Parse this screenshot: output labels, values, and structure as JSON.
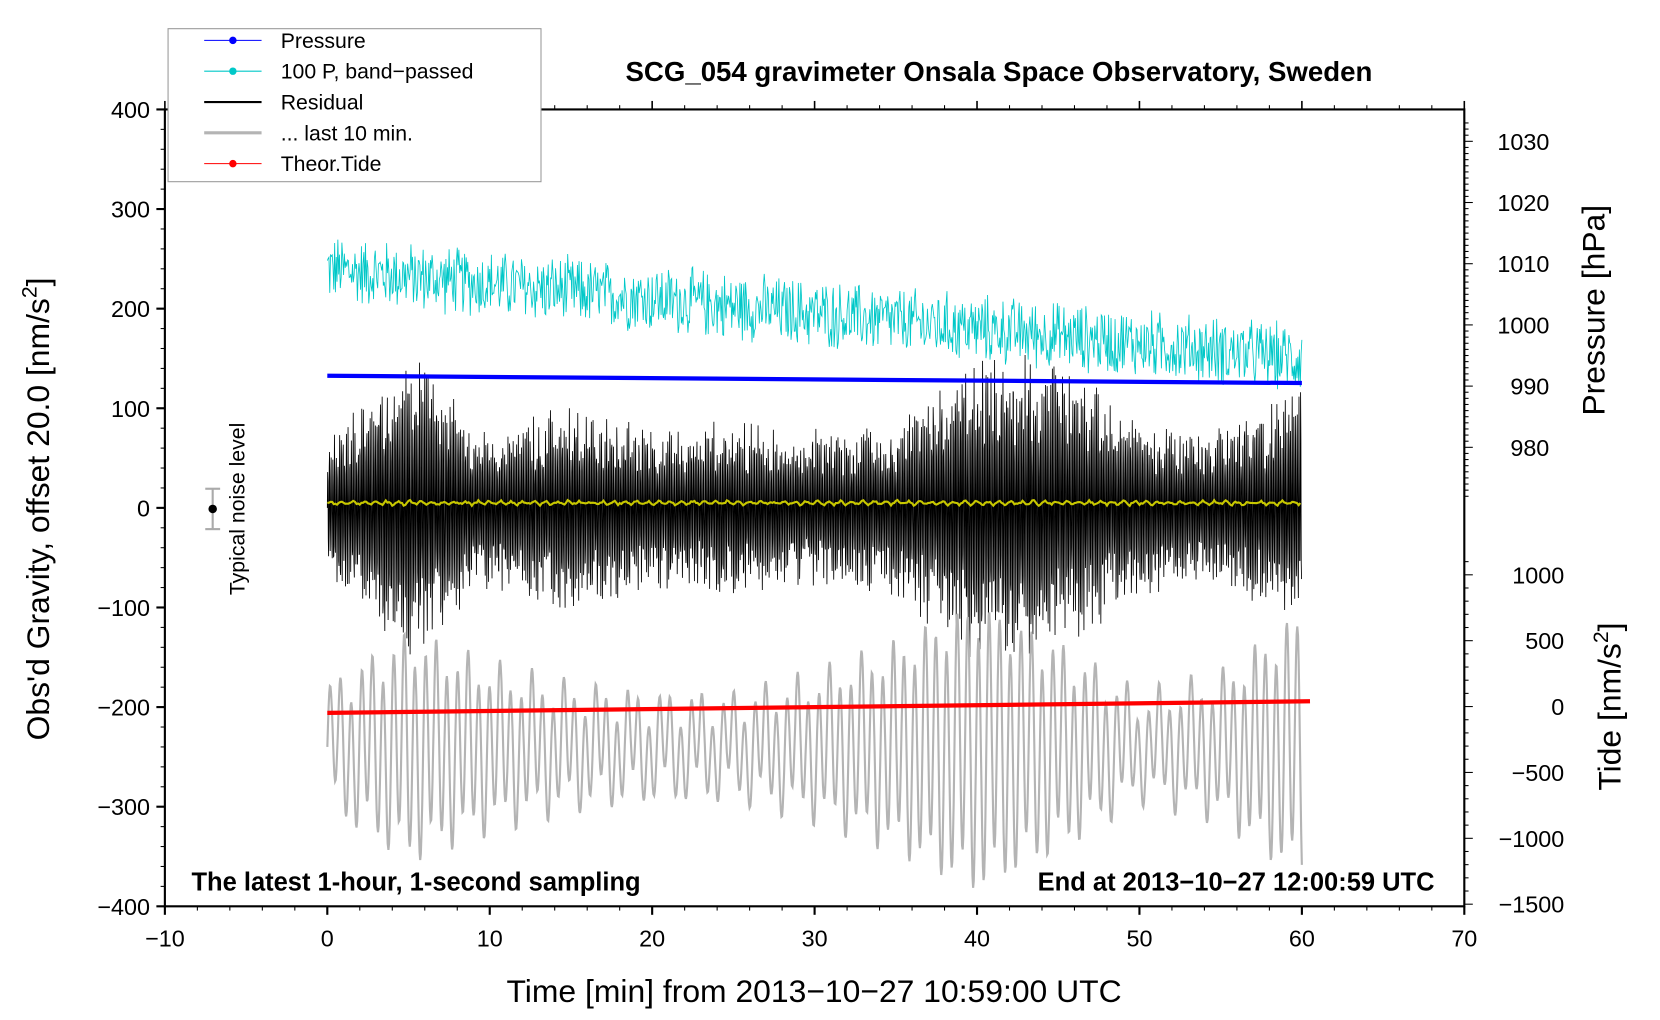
{
  "chart_data": {
    "type": "line",
    "title": "SCG_054 gravimeter Onsala Space Observatory, Sweden",
    "xlabel": "Time [min] from 2013−10−27 10:59:00 UTC",
    "ylabel": "Obs'd Gravity, offset 20.0 [nm/s",
    "ylabel_sup": "2",
    "ylabel_end": "]",
    "y2label": "Pressure [hPa]",
    "y3label": "Tide [nm/s",
    "y3label_sup": "2",
    "y3label_end": "]",
    "xlim": [
      -10,
      70
    ],
    "ylim": [
      -400,
      400
    ],
    "y2lim": [
      980,
      1030
    ],
    "y3lim": [
      -1500,
      1000
    ],
    "xticks": [
      "−10",
      "0",
      "10",
      "20",
      "30",
      "40",
      "50",
      "60",
      "70"
    ],
    "yticks": [
      "400",
      "300",
      "200",
      "100",
      "0",
      "−100",
      "−200",
      "−300",
      "−400"
    ],
    "y2ticks": [
      "1030",
      "1020",
      "1010",
      "1000",
      "990",
      "980"
    ],
    "y3ticks": [
      "1000",
      "500",
      "0",
      "−500",
      "−1000",
      "−1500"
    ],
    "annotation_left": "The latest 1-hour, 1-second sampling",
    "annotation_right": "End at 2013−10−27 12:00:59 UTC",
    "noise_label": "Typical noise level",
    "noise_bar": {
      "x": -7,
      "y": 0,
      "err": 20
    },
    "legend": [
      {
        "label": "Pressure",
        "color": "#0000ff"
      },
      {
        "label": "100 P, band−passed",
        "color": "#00c8c8"
      },
      {
        "label": "Residual",
        "color": "#000000"
      },
      {
        "label": "... last 10 min.",
        "color": "#b4b4b4"
      },
      {
        "label": "Theor.Tide",
        "color": "#ff0000"
      }
    ],
    "legend_position": "top-left",
    "series": {
      "pressure_hpa": {
        "x": [
          0,
          60
        ],
        "y": [
          991.7,
          990.5
        ],
        "color": "#0000ff"
      },
      "tide_nm_s2": {
        "x": [
          0,
          60.5
        ],
        "y": [
          -48,
          40
        ],
        "color": "#ff0000"
      },
      "pressure_bandpassed_gravity_units": {
        "x": [
          0,
          60
        ],
        "center": [
          240,
          150
        ],
        "amplitude": 35,
        "color": "#00c8c8"
      },
      "residual_envelope_per_5min": {
        "x": [
          0,
          5,
          10,
          15,
          20,
          25,
          30,
          35,
          40,
          45,
          50,
          55,
          60
        ],
        "amplitude": [
          70,
          160,
          80,
          110,
          80,
          90,
          80,
          90,
          160,
          150,
          90,
          80,
          130
        ],
        "color": "#000000"
      },
      "residual_smoothed": {
        "x": [
          0,
          60
        ],
        "y": [
          5,
          5
        ],
        "color": "#c8c800"
      },
      "last_10_min_envelope_per_5min": {
        "x": [
          0,
          5,
          10,
          15,
          20,
          25,
          30,
          35,
          40,
          45,
          50,
          55,
          60
        ],
        "center": -240,
        "amplitude": [
          50,
          100,
          70,
          50,
          40,
          40,
          60,
          90,
          130,
          90,
          40,
          60,
          120
        ],
        "color": "#b4b4b4"
      }
    }
  }
}
